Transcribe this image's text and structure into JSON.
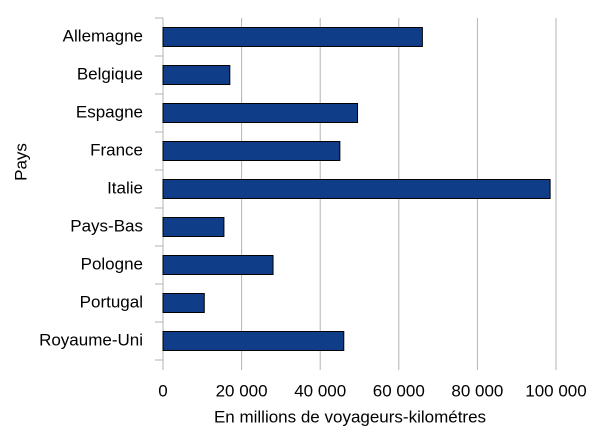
{
  "chart_data": {
    "type": "barh",
    "categories": [
      "Allemagne",
      "Belgique",
      "Espagne",
      "France",
      "Italie",
      "Pays-Bas",
      "Pologne",
      "Portugal",
      "Royaume-Uni"
    ],
    "values": [
      66000,
      17000,
      49500,
      45000,
      98500,
      15500,
      28000,
      10500,
      46000
    ],
    "color": "#0f3d87",
    "xlim": [
      0,
      100000
    ],
    "xticks": [
      0,
      {
        "value": 20000,
        "label": "20 000"
      },
      {
        "value": 40000,
        "label": "40 000"
      },
      {
        "value": 60000,
        "label": "60 000"
      },
      {
        "value": 80000,
        "label": "80 000"
      },
      {
        "value": 100000,
        "label": "100 000"
      }
    ],
    "grid": true,
    "xlabel": "En millions de voyageurs-kilométres",
    "ylabel": "Pays"
  }
}
